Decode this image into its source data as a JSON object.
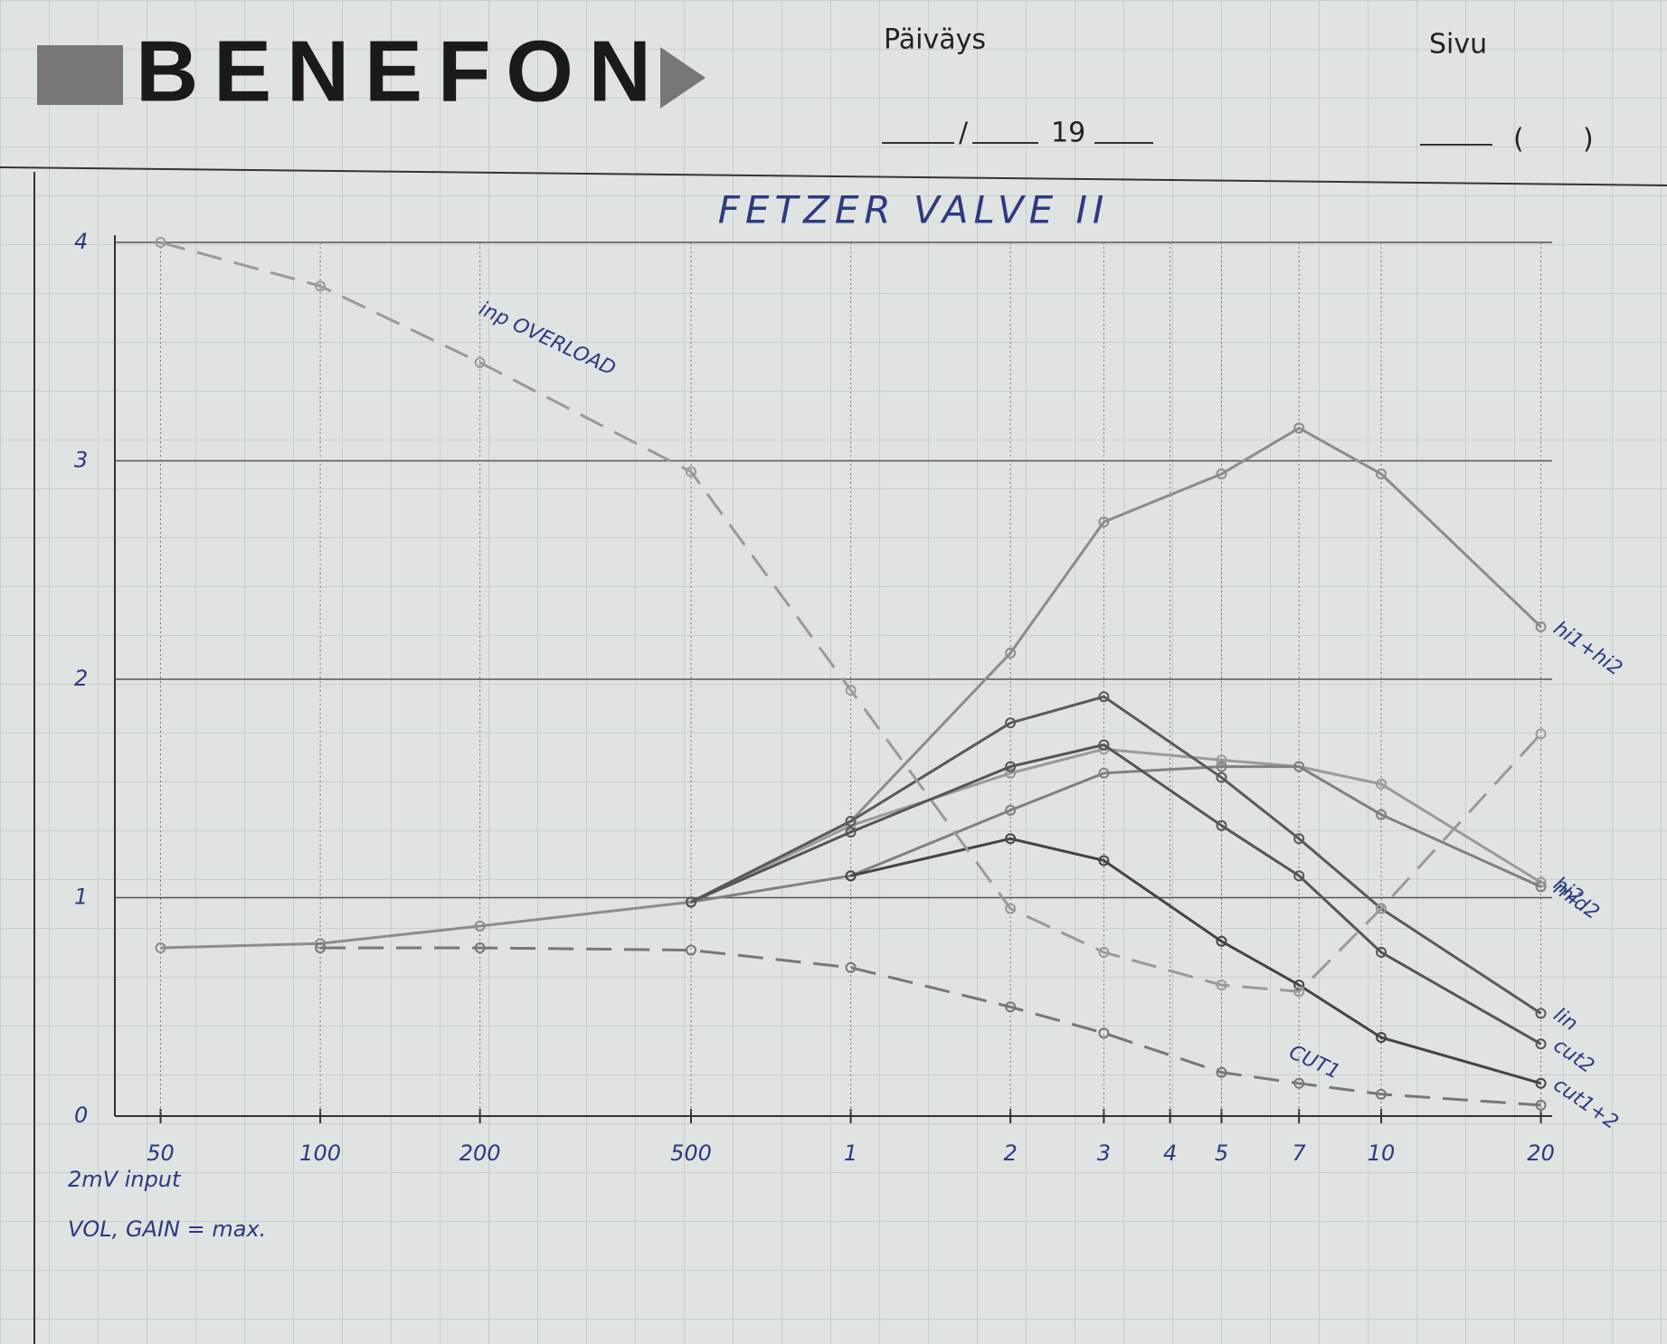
{
  "header": {
    "logo": "BENEFON",
    "date_label": "Päiväys",
    "date_separator": "/",
    "year": "19",
    "page_label": "Sivu",
    "page_open": "(",
    "page_close": ")"
  },
  "chart_data": {
    "type": "line",
    "title": "FETZER VALVE II",
    "annotations": [
      "2mV input",
      "VOL, GAIN = max."
    ],
    "x": [
      50,
      100,
      200,
      500,
      1000,
      2000,
      3000,
      5000,
      7000,
      10000,
      20000
    ],
    "xlog": true,
    "xlim": [
      41,
      21000
    ],
    "xticks": [
      50,
      100,
      200,
      500,
      {
        "value": 1000,
        "label": "1"
      },
      {
        "value": 2000,
        "label": "2"
      },
      {
        "value": 3000,
        "label": "3"
      },
      {
        "value": 4000,
        "label": "4"
      },
      {
        "value": 5000,
        "label": "5"
      },
      {
        "value": 7000,
        "label": "7"
      },
      {
        "value": 10000,
        "label": "10"
      },
      {
        "value": 20000,
        "label": "20"
      }
    ],
    "ylim": [
      0,
      4
    ],
    "yticks": [
      0,
      1,
      2,
      3,
      4
    ],
    "grid": true,
    "series": [
      {
        "name": "hi1+hi2",
        "color": "#8c8c8c",
        "style": "solid",
        "values": [
          0.77,
          0.79,
          0.87,
          0.98,
          1.35,
          2.12,
          2.72,
          2.94,
          3.15,
          2.94,
          2.24
        ]
      },
      {
        "name": "hi2",
        "color": "#9a9a9a",
        "style": "solid",
        "values": [
          null,
          null,
          null,
          0.98,
          1.33,
          1.57,
          1.68,
          1.63,
          1.6,
          1.52,
          1.07
        ]
      },
      {
        "name": "mid2",
        "color": "#808080",
        "style": "solid",
        "values": [
          null,
          null,
          null,
          0.98,
          1.1,
          1.4,
          1.57,
          1.6,
          1.6,
          1.38,
          1.05
        ]
      },
      {
        "name": "lin",
        "color": "#5a5a5a",
        "style": "solid",
        "values": [
          null,
          null,
          null,
          0.98,
          1.35,
          1.8,
          1.92,
          1.55,
          1.27,
          0.95,
          0.47
        ]
      },
      {
        "name": "cut2",
        "color": "#555555",
        "style": "solid",
        "values": [
          null,
          null,
          null,
          0.98,
          1.3,
          1.6,
          1.7,
          1.33,
          1.1,
          0.75,
          0.33
        ]
      },
      {
        "name": "cut1+2",
        "color": "#444444",
        "style": "solid",
        "values": [
          null,
          null,
          null,
          null,
          1.1,
          1.27,
          1.17,
          0.8,
          0.6,
          0.36,
          0.15
        ]
      },
      {
        "name": "CUT1",
        "color": "#777777",
        "style": "dashed",
        "values": [
          null,
          0.77,
          0.77,
          0.76,
          0.68,
          0.5,
          0.38,
          0.2,
          0.15,
          0.1,
          0.05
        ]
      },
      {
        "name": "inp OVERLOAD",
        "color": "#9a9a9a",
        "style": "dashed",
        "values": [
          4.0,
          3.8,
          3.45,
          2.95,
          1.95,
          0.95,
          0.75,
          0.6,
          0.57,
          0.95,
          1.75
        ]
      }
    ]
  }
}
